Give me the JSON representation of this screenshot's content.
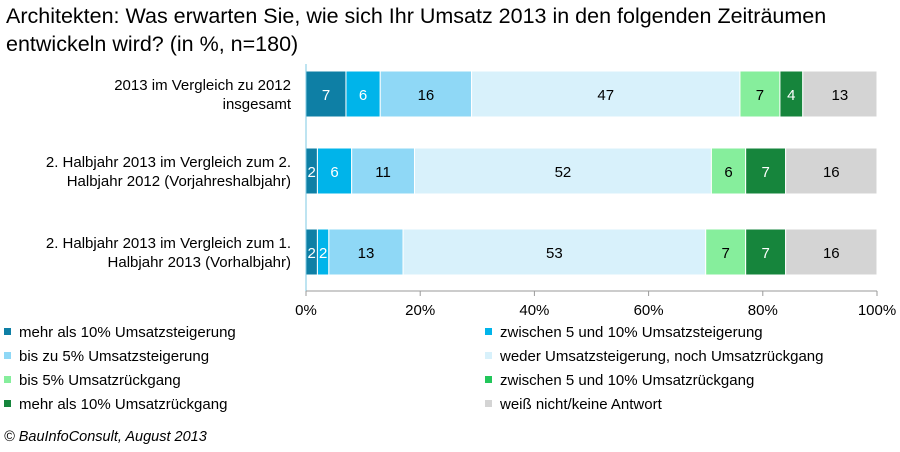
{
  "title": "Architekten: Was erwarten Sie, wie  sich Ihr Umsatz 2013 in den folgenden Zeiträumen entwickeln wird? (in %, n=180)",
  "source": "© BauInfoConsult, August 2013",
  "colors": {
    "mehr als 10% Umsatzsteigerung": "#0e7fa5",
    "zwischen 5 und 10% Umsatzsteigerung": "#00b4ea",
    "bis zu 5% Umsatzsteigerung": "#8fd8f6",
    "weder Umsatzsteigerung, noch Umsatzrückgang": "#d8f1fb",
    "bis 5% Umsatzrückgang": "#86ee9c",
    "zwischen 5 und 10% Umsatzrückgang": "#22c65a",
    "mehr als 10% Umsatzrückgang": "#16853c",
    "weiß nicht/keine Antwort": "#d4d4d4"
  },
  "chart_data": {
    "type": "bar",
    "orientation": "horizontal",
    "stacked": true,
    "categories": [
      [
        "2013 im Vergleich zu 2012",
        "insgesamt"
      ],
      [
        "2. Halbjahr 2013 im Vergleich zum 2.",
        "Halbjahr 2012 (Vorjahreshalbjahr)"
      ],
      [
        "2. Halbjahr 2013 im Vergleich zum 1.",
        "Halbjahr 2013 (Vorhalbjahr)"
      ]
    ],
    "series": [
      {
        "name": "mehr als 10% Umsatzsteigerung",
        "values": [
          7,
          2,
          2
        ]
      },
      {
        "name": "zwischen 5 und 10% Umsatzsteigerung",
        "values": [
          6,
          6,
          2
        ]
      },
      {
        "name": "bis zu 5% Umsatzsteigerung",
        "values": [
          16,
          11,
          13
        ]
      },
      {
        "name": "weder Umsatzsteigerung, noch Umsatzrückgang",
        "values": [
          47,
          52,
          53
        ]
      },
      {
        "name": "bis 5% Umsatzrückgang",
        "values": [
          7,
          6,
          7
        ]
      },
      {
        "name": "zwischen 5 und 10% Umsatzrückgang",
        "values": [
          0,
          0,
          0
        ]
      },
      {
        "name": "mehr als 10% Umsatzrückgang",
        "values": [
          4,
          7,
          7
        ]
      },
      {
        "name": "weiß nicht/keine Antwort",
        "values": [
          13,
          16,
          16
        ]
      }
    ],
    "value_labels": [
      [
        "7",
        "6",
        "16",
        "47",
        "7",
        "",
        "4",
        "13"
      ],
      [
        "2",
        "6",
        "11",
        "52",
        "6",
        "",
        "7",
        "16"
      ],
      [
        "2",
        "2",
        "13",
        "53",
        "7",
        "",
        "7",
        "16"
      ]
    ],
    "xlim": [
      0,
      100
    ],
    "xticks": [
      "0%",
      "20%",
      "40%",
      "60%",
      "80%",
      "100%"
    ],
    "legend_position": "bottom, two columns",
    "grid": false
  }
}
